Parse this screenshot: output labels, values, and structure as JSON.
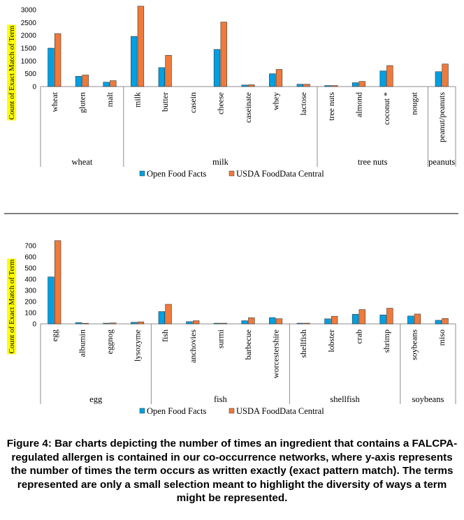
{
  "colors": {
    "open_food_facts": "#00A0E3",
    "usda": "#F07A3A",
    "axis": "#8C8C8C",
    "ylabel_highlight": "#FFFF00"
  },
  "chart_data": [
    {
      "type": "bar",
      "ylabel": "Count of Exact Match of Term",
      "ylim": [
        0,
        3000
      ],
      "yticks": [
        "0",
        "500",
        "1000",
        "1500",
        "2000",
        "2500",
        "3000"
      ],
      "categories": [
        "wheat",
        "gluten",
        "malt",
        "milk",
        "butter",
        "casein",
        "cheese",
        "caseinate",
        "whey",
        "lactose",
        "tree nuts",
        "almond",
        "coconut *",
        "nougat",
        "peanut/peanuts"
      ],
      "groups": [
        {
          "label": "wheat",
          "size": 3
        },
        {
          "label": "milk",
          "size": 7
        },
        {
          "label": "tree nuts",
          "size": 4
        },
        {
          "label": "peanuts",
          "size": 1
        }
      ],
      "series": [
        {
          "name": "Open Food Facts",
          "values": [
            1500,
            400,
            170,
            1960,
            740,
            0,
            1450,
            60,
            500,
            90,
            40,
            150,
            610,
            0,
            580
          ]
        },
        {
          "name": "USDA FoodData Central",
          "values": [
            2070,
            450,
            230,
            3140,
            1220,
            0,
            2520,
            70,
            670,
            90,
            40,
            200,
            820,
            0,
            880
          ]
        }
      ],
      "legend": "bottom"
    },
    {
      "type": "bar",
      "ylabel": "Count of Exact Match of Term",
      "ylim": [
        0,
        750
      ],
      "yticks": [
        "0",
        "100",
        "200",
        "300",
        "400",
        "500",
        "600",
        "700"
      ],
      "categories": [
        "egg",
        "albumin",
        "eggnog",
        "lysozyme",
        "fish",
        "anchovies",
        "surmi",
        "barbecue",
        "worcestershire",
        "shellfish",
        "lobster",
        "crab",
        "shrimp",
        "soybeans",
        "miso"
      ],
      "groups": [
        {
          "label": "egg",
          "size": 4
        },
        {
          "label": "fish",
          "size": 5
        },
        {
          "label": "shellfish",
          "size": 4
        },
        {
          "label": "soybeans",
          "size": 2
        }
      ],
      "series": [
        {
          "name": "Open Food Facts",
          "values": [
            420,
            12,
            6,
            14,
            110,
            20,
            6,
            28,
            56,
            6,
            45,
            86,
            80,
            70,
            32
          ]
        },
        {
          "name": "USDA FoodData Central",
          "values": [
            745,
            5,
            8,
            18,
            175,
            28,
            6,
            55,
            46,
            6,
            68,
            128,
            140,
            88,
            48
          ]
        }
      ],
      "legend": "bottom"
    }
  ],
  "caption": "Figure 4: Bar charts depicting the number of times an ingredient that contains a FALCPA-regulated allergen is contained in our co-occurrence networks, where y-axis represents the number of times the term occurs as written exactly (exact pattern match). The terms represented are only a small selection meant to highlight the diversity of ways a term might be represented."
}
